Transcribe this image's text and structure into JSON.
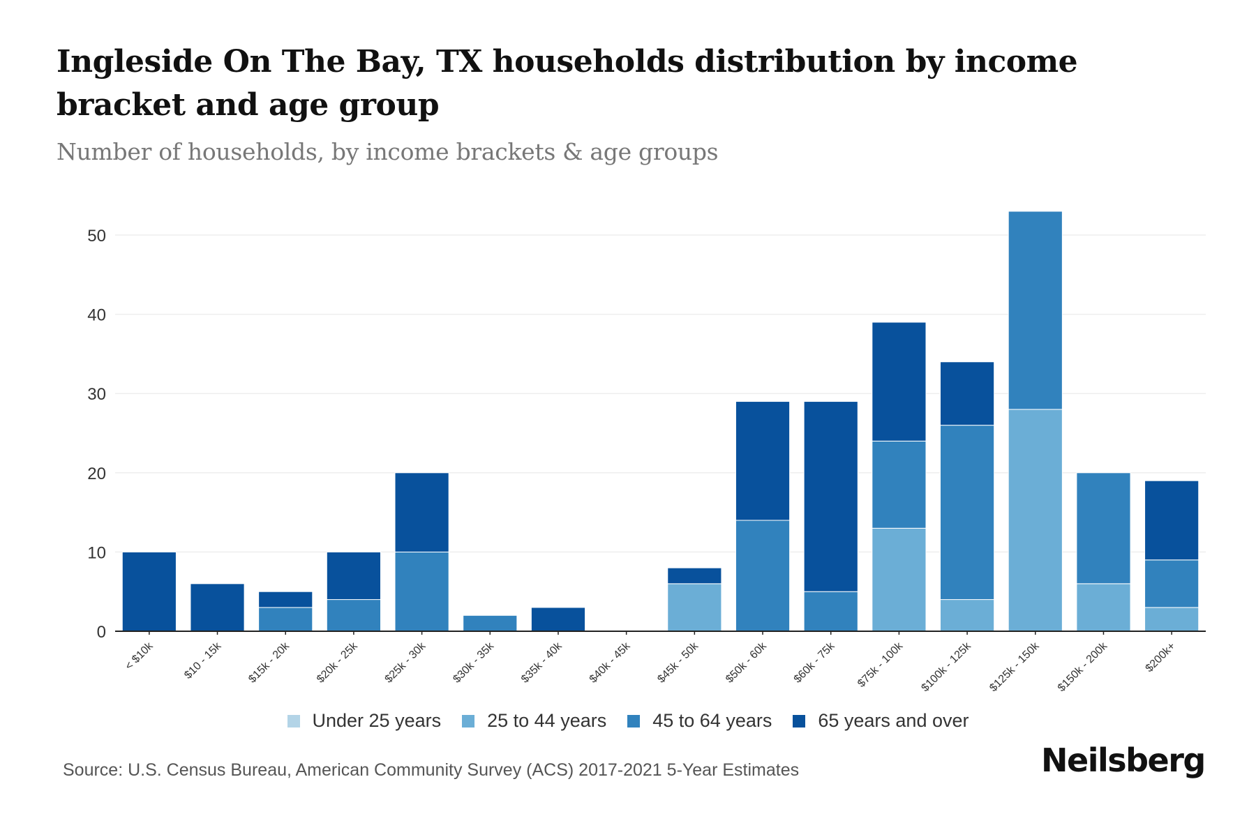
{
  "header": {
    "title": "Ingleside On The Bay, TX households distribution by income bracket and age group",
    "subtitle": "Number of households, by income brackets & age groups"
  },
  "footer": {
    "source": "Source: U.S. Census Bureau, American Community Survey (ACS) 2017-2021 5-Year Estimates",
    "brand": "Neilsberg"
  },
  "chart_data": {
    "type": "bar",
    "stacked": true,
    "title": "Ingleside On The Bay, TX households distribution by income bracket and age group",
    "subtitle": "Number of households, by income brackets & age groups",
    "xlabel": "",
    "ylabel": "",
    "ylim": [
      0,
      55
    ],
    "yticks": [
      0,
      10,
      20,
      30,
      40,
      50
    ],
    "grid": true,
    "legend_position": "bottom",
    "categories": [
      "< $10k",
      "$10 - 15k",
      "$15k - 20k",
      "$20k - 25k",
      "$25k - 30k",
      "$30k - 35k",
      "$35k - 40k",
      "$40k - 45k",
      "$45k - 50k",
      "$50k - 60k",
      "$60k - 75k",
      "$75k - 100k",
      "$100k - 125k",
      "$125k - 150k",
      "$150k - 200k",
      "$200k+"
    ],
    "series": [
      {
        "name": "Under 25 years",
        "color": "#b3d4e7",
        "values": [
          0,
          0,
          0,
          0,
          0,
          0,
          0,
          0,
          0,
          0,
          0,
          0,
          0,
          0,
          0,
          0
        ]
      },
      {
        "name": "25 to 44 years",
        "color": "#6baed6",
        "values": [
          0,
          0,
          0,
          0,
          0,
          0,
          0,
          0,
          6,
          0,
          0,
          13,
          4,
          28,
          6,
          3
        ]
      },
      {
        "name": "45 to 64 years",
        "color": "#3182bd",
        "values": [
          0,
          0,
          3,
          4,
          10,
          2,
          0,
          0,
          0,
          14,
          5,
          11,
          22,
          25,
          14,
          6
        ]
      },
      {
        "name": "65 years and over",
        "color": "#08519c",
        "values": [
          10,
          6,
          2,
          6,
          10,
          0,
          3,
          0,
          2,
          15,
          24,
          15,
          8,
          0,
          0,
          10
        ]
      }
    ]
  }
}
